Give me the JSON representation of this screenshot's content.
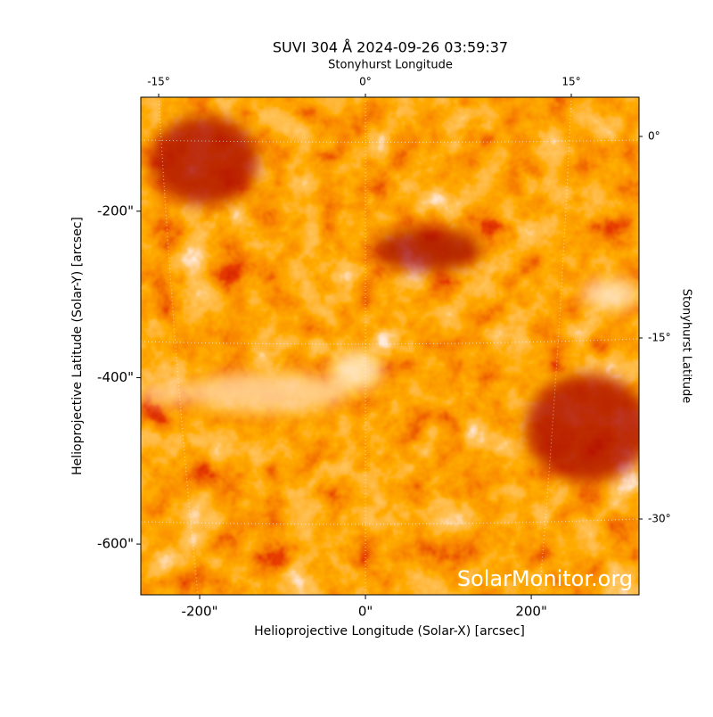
{
  "chart_data": {
    "type": "image",
    "title": "SUVI 304 Å 2024-09-26 03:59:37",
    "x_label": "Helioprojective Longitude (Solar-X) [arcsec]",
    "y_label": "Helioprojective Latitude (Solar-Y) [arcsec]",
    "x2_label": "Stonyhurst Longitude",
    "y2_label": "Stonyhurst Latitude",
    "xlim": [
      -271,
      330
    ],
    "ylim": [
      -661,
      -63
    ],
    "xticks": [
      {
        "value": -200,
        "label": "-200\""
      },
      {
        "value": 0,
        "label": "0\""
      },
      {
        "value": 200,
        "label": "200\""
      }
    ],
    "yticks": [
      {
        "value": -200,
        "label": "-200\""
      },
      {
        "value": -400,
        "label": "-400\""
      },
      {
        "value": -600,
        "label": "-600\""
      }
    ],
    "x2ticks": [
      {
        "value": -15,
        "label": "-15°"
      },
      {
        "value": 0,
        "label": "0°"
      },
      {
        "value": 15,
        "label": "15°"
      }
    ],
    "y2ticks": [
      {
        "value": 0,
        "label": "0°"
      },
      {
        "value": -15,
        "label": "-15°"
      },
      {
        "value": -30,
        "label": "-30°"
      }
    ],
    "watermark": "SolarMonitor.org"
  }
}
